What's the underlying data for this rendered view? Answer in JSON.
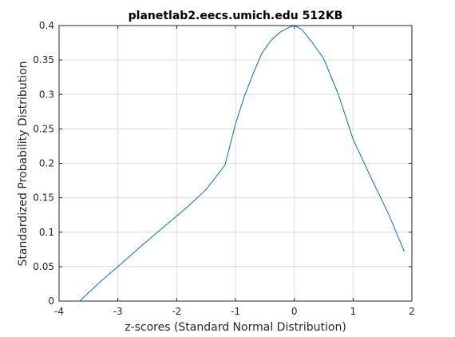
{
  "chart_data": {
    "type": "line",
    "title": "planetlab2.eecs.umich.edu 512KB",
    "xlabel": "z-scores (Standard Normal Distribution)",
    "ylabel": "Standardized Probability Distribution",
    "xlim": [
      -4,
      2
    ],
    "ylim": [
      0,
      0.4
    ],
    "xticks": [
      -4,
      -3,
      -2,
      -1,
      0,
      1,
      2
    ],
    "xtick_labels": [
      "-4",
      "-3",
      "-2",
      "-1",
      "0",
      "1",
      "2"
    ],
    "yticks": [
      0,
      0.05,
      0.1,
      0.15,
      0.2,
      0.25,
      0.3,
      0.35,
      0.4
    ],
    "ytick_labels": [
      "0",
      "0.05",
      "0.1",
      "0.15",
      "0.2",
      "0.25",
      "0.3",
      "0.35",
      "0.4"
    ],
    "grid": true,
    "series": [
      {
        "color": "#0072bd",
        "x": [
          -3.65,
          -3.3,
          -3.0,
          -2.6,
          -2.2,
          -1.8,
          -1.5,
          -1.18,
          -1.0,
          -0.85,
          -0.7,
          -0.55,
          -0.4,
          -0.25,
          -0.1,
          0.0,
          0.12,
          0.3,
          0.5,
          0.75,
          1.0,
          1.3,
          1.6,
          1.87
        ],
        "y": [
          0.0,
          0.028,
          0.05,
          0.08,
          0.109,
          0.138,
          0.162,
          0.197,
          0.257,
          0.297,
          0.33,
          0.36,
          0.378,
          0.39,
          0.397,
          0.4,
          0.395,
          0.376,
          0.352,
          0.3,
          0.235,
          0.18,
          0.127,
          0.072
        ]
      }
    ]
  }
}
